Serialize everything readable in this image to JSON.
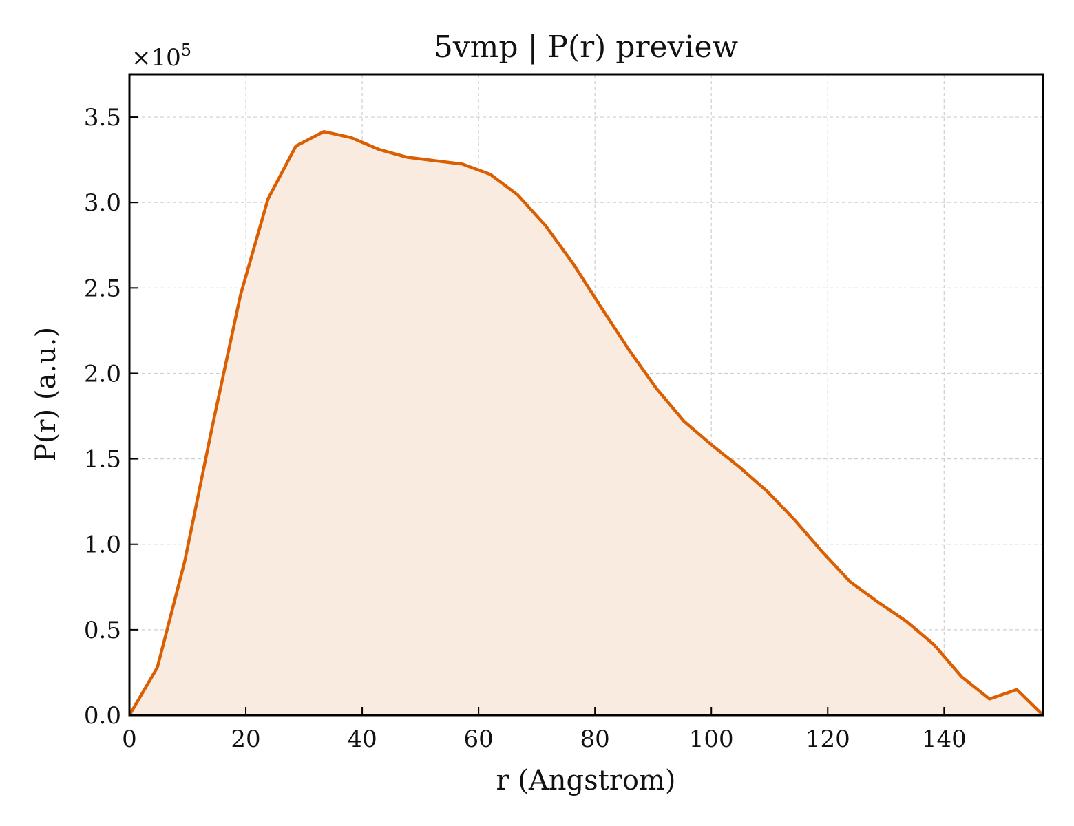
{
  "chart_data": {
    "type": "area",
    "title": "5vmp | P(r) preview",
    "xlabel": "r (Angstrom)",
    "ylabel": "P(r) (a.u.)",
    "y_multiplier_label": "×10",
    "y_multiplier_exponent": "5",
    "xlim": [
      0,
      157
    ],
    "ylim": [
      0,
      3.75
    ],
    "x_ticks": [
      0,
      20,
      40,
      60,
      80,
      100,
      120,
      140
    ],
    "x_tick_labels": [
      "0",
      "20",
      "40",
      "60",
      "80",
      "100",
      "120",
      "140"
    ],
    "y_ticks": [
      0,
      0.5,
      1.0,
      1.5,
      2.0,
      2.5,
      3.0,
      3.5
    ],
    "y_tick_labels": [
      "0.0",
      "0.5",
      "1.0",
      "1.5",
      "2.0",
      "2.5",
      "3.0",
      "3.5"
    ],
    "grid": true,
    "line_color": "#d95f02",
    "fill_color": "#f9ebe0",
    "x": [
      0,
      4.8,
      9.5,
      14.3,
      19.1,
      23.8,
      28.6,
      33.4,
      38.1,
      42.9,
      47.7,
      52.4,
      57.2,
      62.0,
      66.7,
      71.5,
      76.3,
      81.0,
      85.8,
      90.6,
      95.3,
      100.1,
      104.9,
      109.6,
      114.4,
      119.2,
      123.9,
      128.7,
      133.5,
      138.2,
      143.0,
      147.8,
      152.5,
      157.0
    ],
    "y": [
      0.0,
      0.28,
      0.9,
      1.7,
      2.46,
      3.02,
      3.33,
      3.415,
      3.38,
      3.31,
      3.265,
      3.245,
      3.225,
      3.165,
      3.045,
      2.865,
      2.64,
      2.39,
      2.14,
      1.91,
      1.72,
      1.58,
      1.45,
      1.31,
      1.14,
      0.95,
      0.78,
      0.66,
      0.55,
      0.415,
      0.225,
      0.095,
      0.15,
      0.0
    ]
  }
}
